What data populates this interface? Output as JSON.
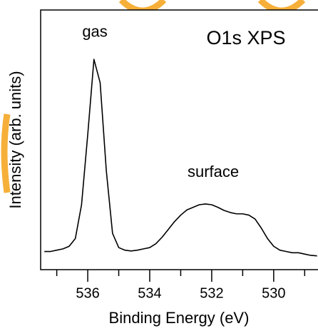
{
  "chart_data": {
    "type": "line",
    "title": "O1s XPS",
    "xlabel": "Binding Energy (eV)",
    "ylabel": "Intensity (arb. units)",
    "annotations": [
      {
        "text": "gas",
        "x": 535.77,
        "y": 88
      },
      {
        "text": "surface",
        "x": 531.95,
        "y": 34
      }
    ],
    "x": [
      537.4,
      537.2,
      537.0,
      536.8,
      536.6,
      536.4,
      536.2,
      536.0,
      535.8,
      535.6,
      535.4,
      535.2,
      535.0,
      534.8,
      534.6,
      534.4,
      534.2,
      534.0,
      533.8,
      533.6,
      533.4,
      533.2,
      533.0,
      532.8,
      532.6,
      532.4,
      532.2,
      532.0,
      531.8,
      531.6,
      531.4,
      531.2,
      531.0,
      530.8,
      530.6,
      530.4,
      530.2,
      530.0,
      529.8,
      529.6,
      529.4,
      529.2,
      529.0,
      528.8,
      528.6
    ],
    "values": [
      7,
      7,
      7.5,
      8,
      9,
      12,
      25,
      52,
      81,
      72,
      38,
      14,
      8.5,
      7.5,
      7.2,
      7.5,
      8,
      8.5,
      10,
      12.5,
      15.5,
      18.5,
      21,
      23,
      24,
      25,
      25.3,
      25,
      24,
      22.8,
      22,
      21.5,
      21.5,
      21,
      19.5,
      16,
      12,
      9,
      7.5,
      7,
      6.5,
      6.5,
      6,
      5.5,
      5.3
    ],
    "color": "#000000",
    "xlim": [
      537.52,
      528.57
    ],
    "ylim": [
      0,
      100
    ],
    "xticks": [
      536,
      534,
      532,
      530
    ],
    "xminor_ticks": [
      537,
      535,
      533,
      531,
      529
    ]
  }
}
